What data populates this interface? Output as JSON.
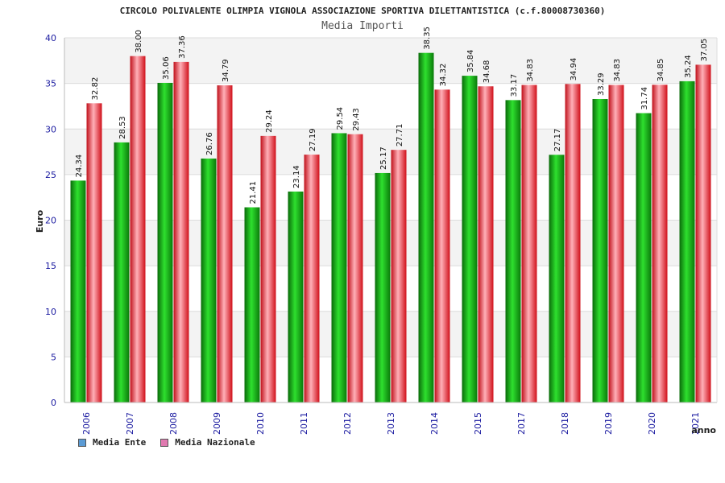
{
  "chart_data": {
    "type": "bar",
    "title": "CIRCOLO POLIVALENTE OLIMPIA VIGNOLA ASSOCIAZIONE SPORTIVA DILETTANTISTICA (c.f.80008730360)",
    "subtitle": "Media Importi",
    "xlabel": "anno",
    "ylabel": "Euro",
    "ylim": [
      0,
      40
    ],
    "yticks": [
      0,
      5,
      10,
      15,
      20,
      25,
      30,
      35,
      40
    ],
    "grid": true,
    "legend_position": "bottom-left",
    "categories": [
      "2006",
      "2007",
      "2008",
      "2009",
      "2010",
      "2011",
      "2012",
      "2013",
      "2014",
      "2015",
      "2017",
      "2018",
      "2019",
      "2020",
      "2021"
    ],
    "series": [
      {
        "name": "Media Ente",
        "color": "#1aa01a",
        "legend_color": "#5b9bd5",
        "values": [
          24.34,
          28.53,
          35.06,
          26.76,
          21.41,
          23.14,
          29.54,
          25.17,
          38.35,
          35.84,
          33.17,
          27.17,
          33.29,
          31.74,
          35.24
        ],
        "labels": [
          "24.34",
          "28.53",
          "35.06",
          "26.76",
          "21.41",
          "23.14",
          "29.54",
          "25.17",
          "38.35",
          "35.84",
          "33.17",
          "27.17",
          "33.29",
          "31.74",
          "35.24"
        ]
      },
      {
        "name": "Media Nazionale",
        "color": "#e0202a",
        "legend_color": "#e07ab0",
        "values": [
          32.82,
          38.0,
          37.36,
          34.79,
          29.24,
          27.19,
          29.43,
          27.71,
          34.32,
          34.68,
          34.83,
          34.94,
          34.83,
          34.85,
          37.05
        ],
        "labels": [
          "32.82",
          "38.00",
          "37.36",
          "34.79",
          "29.24",
          "27.19",
          "29.43",
          "27.71",
          "34.32",
          "34.68",
          "34.83",
          "34.94",
          "34.83",
          "34.85",
          "37.05"
        ]
      }
    ]
  }
}
